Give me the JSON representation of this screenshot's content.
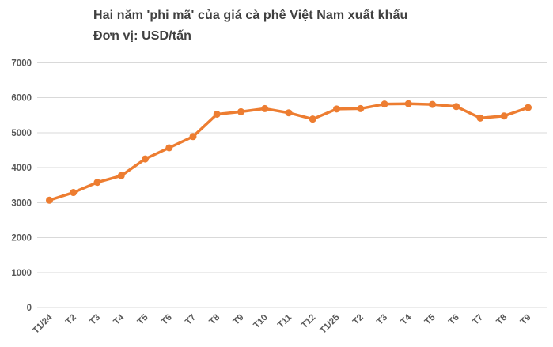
{
  "chart_data": {
    "type": "line",
    "title": "Hai năm 'phi mã' của giá cà phê Việt Nam xuất khẩu",
    "subtitle": "Đơn vị: USD/tấn",
    "categories": [
      "T1/24",
      "T2",
      "T3",
      "T4",
      "T5",
      "T6",
      "T7",
      "T8",
      "T9",
      "T10",
      "T11",
      "T12",
      "T1/25",
      "T2",
      "T3",
      "T4",
      "T5",
      "T6",
      "T7",
      "T8",
      "T9"
    ],
    "values": [
      3070,
      3290,
      3580,
      3770,
      4250,
      4570,
      4890,
      5530,
      5600,
      5690,
      5570,
      5390,
      5680,
      5690,
      5820,
      5830,
      5810,
      5750,
      5420,
      5480,
      5720
    ],
    "ylim": [
      0,
      7000
    ],
    "ytick_step": 1000,
    "ytick_labels": [
      "0",
      "1000",
      "2000",
      "3000",
      "4000",
      "5000",
      "6000",
      "7000"
    ],
    "xtick_rotation_degrees": -45,
    "grid": true,
    "legend": "none",
    "marker": "circle",
    "colors": {
      "line": "#ED7D31",
      "marker": "#ED7D31",
      "gridline": "#D9D9D9",
      "tick_label": "#595959",
      "title": "#404040",
      "background": "#FFFFFF"
    }
  }
}
